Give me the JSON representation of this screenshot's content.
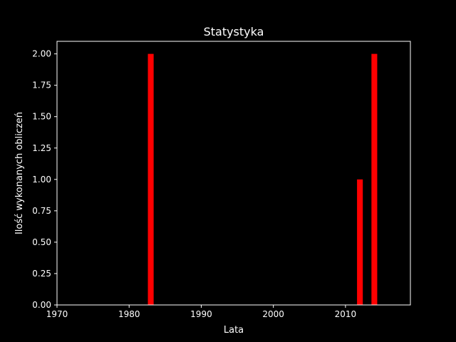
{
  "chart_data": {
    "type": "bar",
    "title": "Statystyka",
    "xlabel": "Lata",
    "ylabel": "Ilość wykonanych obliczeń",
    "x": [
      1983,
      2012,
      2014
    ],
    "values": [
      2,
      1,
      2
    ],
    "bar_color": "#ff0000",
    "background": "#000000",
    "foreground": "#ffffff",
    "xlim": [
      1970,
      2019
    ],
    "ylim": [
      0,
      2.1
    ],
    "xticks": [
      1970,
      1980,
      1990,
      2000,
      2010
    ],
    "xtick_labels": [
      "1970",
      "1980",
      "1990",
      "2000",
      "2010"
    ],
    "yticks": [
      0,
      0.25,
      0.5,
      0.75,
      1,
      1.25,
      1.5,
      1.75,
      2
    ],
    "ytick_labels": [
      "0.00",
      "0.25",
      "0.50",
      "0.75",
      "1.00",
      "1.25",
      "1.50",
      "1.75",
      "2.00"
    ],
    "bar_width": 0.8,
    "grid": false,
    "legend": false
  }
}
